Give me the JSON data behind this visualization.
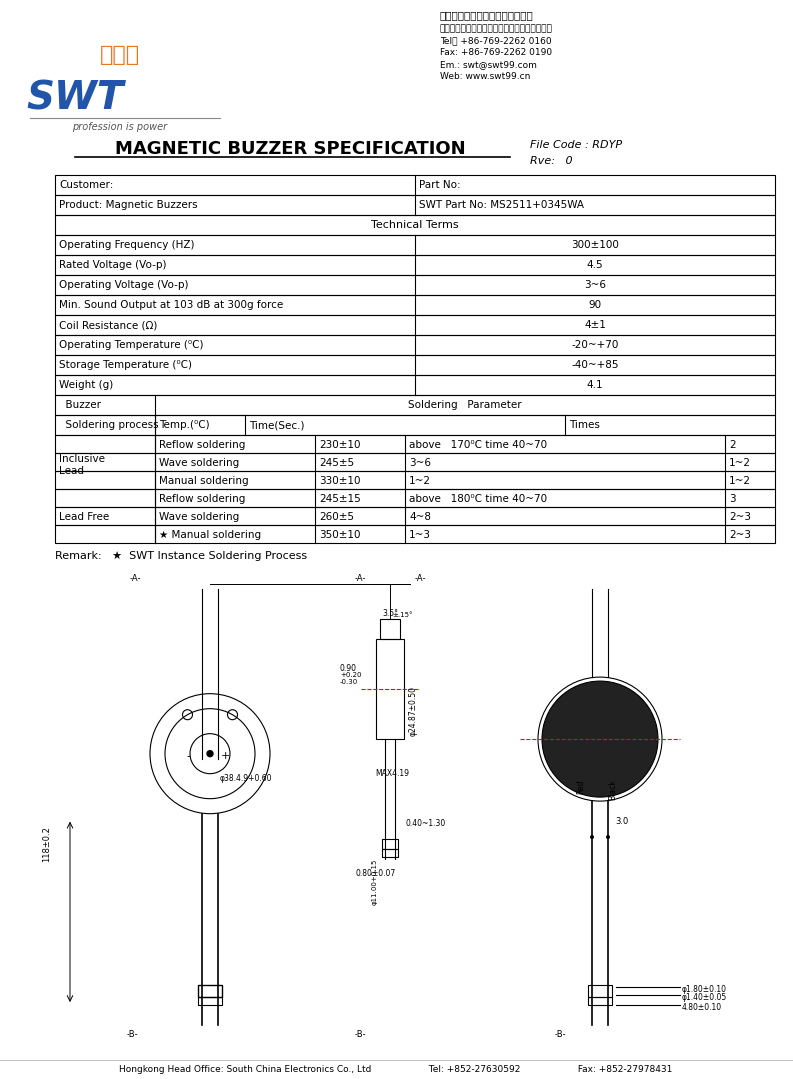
{
  "title": "MAGNETIC BUZZER SPECIFICATION",
  "file_code": "File Code : RDYP",
  "rve": "Rve:   0",
  "company_name": "广东思威特智能科技股份有限公司",
  "company_addr": "地址：广东省东菞市塔崾镇梦露村千牛庄工业园",
  "tel": "Tel： +86-769-2262 0160",
  "fax": "Fax: +86-769-2262 0190",
  "email": "Em.: swt@swt99.com",
  "web": "Web: www.swt99.cn",
  "slogan": "profession is power",
  "customer_label": "Customer:",
  "part_no_label": "Part No:",
  "product_label": "Product: Magnetic Buzzers",
  "swt_part_no": "SWT Part No: MS2511+0345WA",
  "tech_terms": "Technical Terms",
  "specs": [
    [
      "Operating Frequency (HZ)",
      "300±100"
    ],
    [
      "Rated Voltage (Vo-p)",
      "4.5"
    ],
    [
      "Operating Voltage (Vo-p)",
      "3~6"
    ],
    [
      "Min. Sound Output at 103 dB at 300g force",
      "90"
    ],
    [
      "Coil Resistance (Ω)",
      "4±1"
    ],
    [
      "Operating Temperature (⁰C)",
      "-20~+70"
    ],
    [
      "Storage Temperature (⁰C)",
      "-40~+85"
    ],
    [
      "Weight (g)",
      "4.1"
    ]
  ],
  "solder_header": [
    "Buzzer",
    "Soldering   Parameter"
  ],
  "solder_subheader": [
    "Soldering process",
    "Temp.(⁰C)",
    "Time(Sec.)",
    "Times"
  ],
  "solder_rows": [
    [
      "Inclusive\nLead",
      "Reflow soldering",
      "230±10",
      "above   170⁰C time 40~70",
      "2"
    ],
    [
      "",
      "Wave soldering",
      "245±5",
      "3~6",
      "1~2"
    ],
    [
      "",
      "Manual soldering",
      "330±10",
      "1~2",
      "1~2"
    ],
    [
      "Lead Free",
      "Reflow soldering",
      "245±15",
      "above   180⁰C time 40~70",
      "3"
    ],
    [
      "",
      "Wave soldering",
      "260±5",
      "4~8",
      "2~3"
    ],
    [
      "",
      "★ Manual soldering",
      "350±10",
      "1~3",
      "2~3"
    ]
  ],
  "remark": "Remark:   ★  SWT Instance Soldering Process",
  "footer": "Hongkong Head Office: South China Electronics Co., Ltd                    Tel: +852-27630592                    Fax: +852-27978431",
  "bg_color": "#ffffff",
  "border_color": "#000000",
  "text_color": "#000000"
}
